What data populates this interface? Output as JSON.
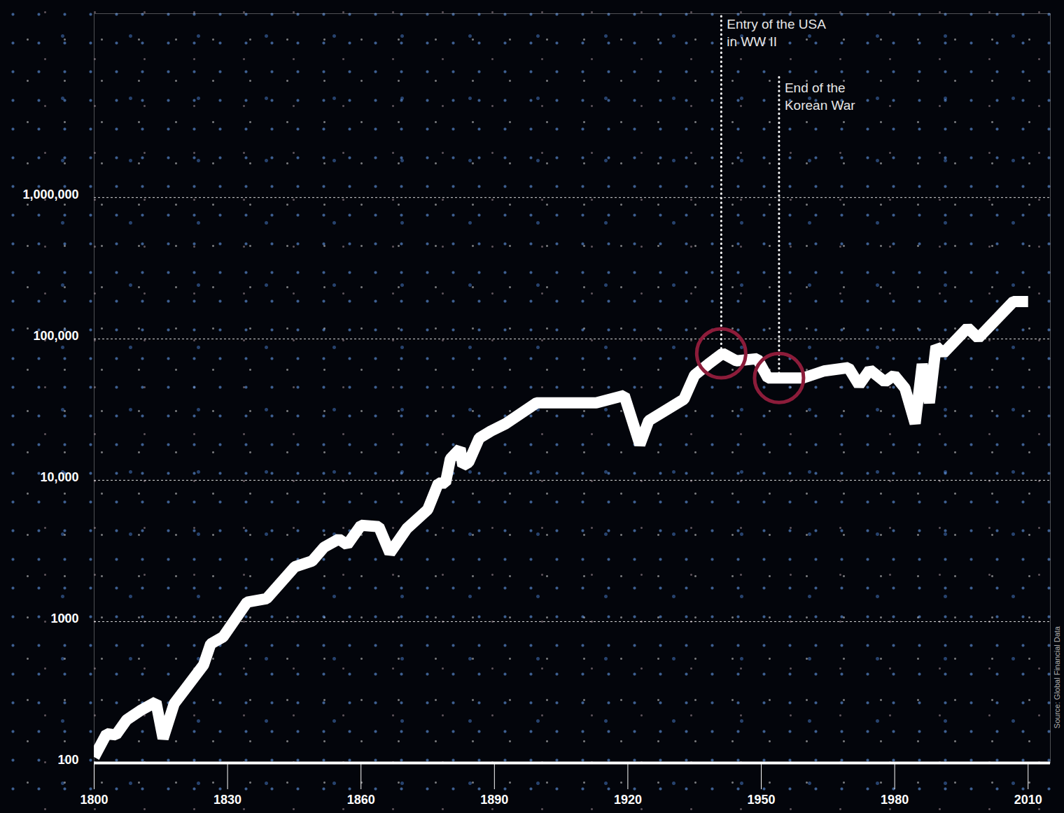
{
  "chart_data": {
    "type": "line",
    "x": [
      1800,
      1802.8,
      1804.9,
      1807.3,
      1810.4,
      1813.9,
      1815.5,
      1818,
      1824.6,
      1826.2,
      1829,
      1834.4,
      1838.8,
      1845.1,
      1849,
      1851.7,
      1855,
      1856.9,
      1860,
      1864,
      1866.5,
      1870.3,
      1875,
      1877.4,
      1879,
      1880.1,
      1882.3,
      1882.9,
      1884.2,
      1886.6,
      1889.2,
      1892.4,
      1899.5,
      1912.9,
      1919.2,
      1922.7,
      1924.7,
      1932.6,
      1935,
      1938.1,
      1941.3,
      1944.4,
      1949.1,
      1951.5,
      1959.4,
      1964.1,
      1969.6,
      1972,
      1974.4,
      1977.8,
      1979.9,
      1982.3,
      1984.6,
      1986.2,
      1987.8,
      1989.3,
      1990.9,
      1996.4,
      1998.8,
      2006.7,
      2010
    ],
    "values": [
      110,
      161,
      158,
      202,
      235,
      270,
      149,
      263,
      494,
      695,
      780,
      1375,
      1455,
      2440,
      2680,
      3360,
      3840,
      3500,
      4800,
      4700,
      3060,
      4550,
      6200,
      9560,
      9560,
      14200,
      16800,
      12700,
      13400,
      19900,
      22300,
      25000,
      35300,
      35300,
      39800,
      17900,
      26400,
      37400,
      55400,
      66300,
      79000,
      70000,
      72500,
      52900,
      52900,
      59300,
      62600,
      47200,
      60500,
      49700,
      55400,
      44800,
      25200,
      66300,
      35300,
      88700,
      79000,
      119900,
      101400,
      184000,
      184000
    ],
    "color": "#ffffff",
    "log": "y",
    "grid": true,
    "xlim": [
      1800,
      2015
    ],
    "ylim": [
      100,
      20000000
    ],
    "xticks": [
      1800,
      1830,
      1860,
      1890,
      1920,
      1950,
      1980,
      2010
    ],
    "yticks": [
      100,
      1000,
      {
        "value": 10000,
        "label": "10,000"
      },
      {
        "value": 100000,
        "label": "100,000"
      },
      {
        "value": 1000000,
        "label": "1,000,000"
      }
    ],
    "annotations": [
      {
        "text": "Entry of the USA\nin WW II",
        "x": 1941,
        "y": 79000
      },
      {
        "text": "End of the\nKorean War",
        "x": 1954,
        "y": 52900
      }
    ],
    "source": "Source: Global Financial Data"
  }
}
